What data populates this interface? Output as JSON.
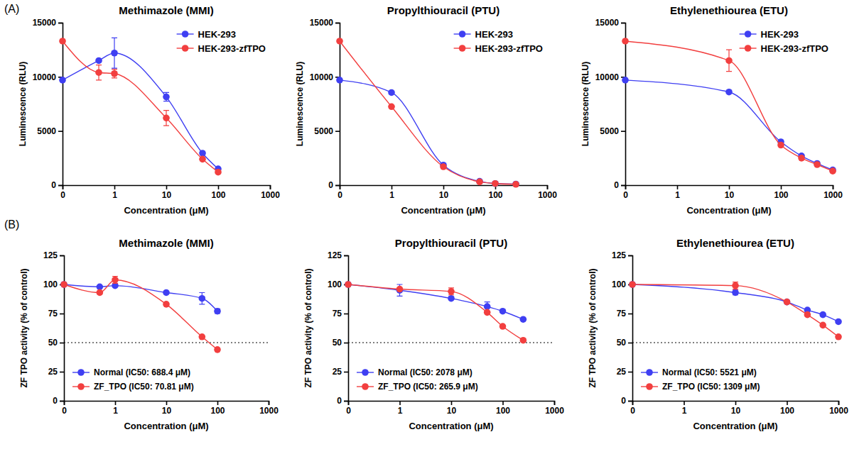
{
  "chart_data": [
    {
      "type": "line",
      "panel_label": "(A)",
      "title": "Methimazole (MMI)",
      "x_label": "Concentration (μM)",
      "y_label": "Luminescence (RLU)",
      "log": "x",
      "x": [
        0.1,
        0.5,
        1,
        10,
        50,
        100
      ],
      "xlim": [
        0.1,
        1000
      ],
      "xticks": [
        {
          "value": 0.1,
          "label": "0"
        },
        1,
        10,
        100,
        1000
      ],
      "ylim": [
        0,
        15000
      ],
      "yticks": [
        0,
        5000,
        10000,
        15000
      ],
      "legend": "upper right",
      "series": [
        {
          "name": "HEK-293",
          "color": "#3f3ff2",
          "marker": "circle",
          "values": [
            9700,
            11500,
            12200,
            8150,
            2950,
            1500
          ],
          "errors": [
            0,
            0,
            1400,
            400,
            0,
            0
          ]
        },
        {
          "name": "HEK-293-zfTPO",
          "color": "#f23f3f",
          "marker": "circle",
          "values": [
            13300,
            10400,
            10300,
            6200,
            2400,
            1200
          ],
          "errors": [
            0,
            700,
            400,
            700,
            0,
            0
          ]
        }
      ]
    },
    {
      "type": "line",
      "title": "Propylthiouracil (PTU)",
      "x_label": "Concentration (μM)",
      "y_label": "Luminescence (RLU)",
      "log": "x",
      "x": [
        0.1,
        1,
        10,
        50,
        100,
        250
      ],
      "xlim": [
        0.1,
        1000
      ],
      "xticks": [
        {
          "value": 0.1,
          "label": "0"
        },
        1,
        10,
        100,
        1000
      ],
      "ylim": [
        0,
        15000
      ],
      "yticks": [
        0,
        5000,
        10000,
        15000
      ],
      "legend": "upper right",
      "series": [
        {
          "name": "HEK-293",
          "color": "#3f3ff2",
          "marker": "circle",
          "values": [
            9700,
            8550,
            1850,
            350,
            150,
            100
          ],
          "errors": [
            0,
            0,
            0,
            0,
            0,
            0
          ]
        },
        {
          "name": "HEK-293-zfTPO",
          "color": "#f23f3f",
          "marker": "circle",
          "values": [
            13300,
            7250,
            1700,
            300,
            150,
            80
          ],
          "errors": [
            0,
            0,
            0,
            0,
            0,
            0
          ]
        }
      ]
    },
    {
      "type": "line",
      "title": "Ethylenethiourea (ETU)",
      "x_label": "Concentration (μM)",
      "y_label": "Luminescence (RLU)",
      "log": "x",
      "x": [
        0.1,
        10,
        100,
        250,
        500,
        1000
      ],
      "xlim": [
        0.1,
        1000
      ],
      "xticks": [
        {
          "value": 0.1,
          "label": "0"
        },
        1,
        10,
        100,
        1000
      ],
      "ylim": [
        0,
        15000
      ],
      "yticks": [
        0,
        5000,
        10000,
        15000
      ],
      "legend": "upper right",
      "series": [
        {
          "name": "HEK-293",
          "color": "#3f3ff2",
          "marker": "circle",
          "values": [
            9700,
            8600,
            4000,
            2700,
            2000,
            1400
          ],
          "errors": [
            0,
            0,
            0,
            0,
            0,
            0
          ]
        },
        {
          "name": "HEK-293-zfTPO",
          "color": "#f23f3f",
          "marker": "circle",
          "values": [
            13300,
            11500,
            3700,
            2500,
            1900,
            1300
          ],
          "errors": [
            0,
            1000,
            0,
            0,
            0,
            0
          ]
        }
      ]
    },
    {
      "type": "line",
      "panel_label": "(B)",
      "title": "Methimazole (MMI)",
      "x_label": "Concentration (μM)",
      "y_label": "ZF TPO activity (% of control)",
      "log": "x",
      "x": [
        0.1,
        0.5,
        1,
        10,
        50,
        100
      ],
      "xlim": [
        0.1,
        1000
      ],
      "xticks": [
        {
          "value": 0.1,
          "label": "0"
        },
        1,
        10,
        100,
        1000
      ],
      "ylim": [
        0,
        125
      ],
      "yticks": [
        0,
        25,
        50,
        75,
        100,
        125
      ],
      "threshold": 50,
      "legend": "lower left",
      "series": [
        {
          "name": "Normal (IC50: 688.4 μM)",
          "color": "#3f3ff2",
          "marker": "circle",
          "values": [
            100,
            98,
            99,
            93,
            88,
            77
          ],
          "errors": [
            0,
            0,
            0,
            0,
            5,
            2
          ]
        },
        {
          "name": "ZF_TPO (IC50: 70.81 μM)",
          "color": "#f23f3f",
          "marker": "circle",
          "values": [
            100,
            93,
            104,
            83,
            55,
            44
          ],
          "errors": [
            0,
            1,
            3,
            0,
            0,
            0
          ]
        }
      ]
    },
    {
      "type": "line",
      "title": "Propylthiouracil (PTU)",
      "x_label": "Concentration (μM)",
      "y_label": "ZF TPO activity (% of control)",
      "log": "x",
      "x": [
        0.1,
        1,
        10,
        50,
        100,
        250
      ],
      "xlim": [
        0.1,
        1000
      ],
      "xticks": [
        {
          "value": 0.1,
          "label": "0"
        },
        1,
        10,
        100,
        1000
      ],
      "ylim": [
        0,
        125
      ],
      "yticks": [
        0,
        25,
        50,
        75,
        100,
        125
      ],
      "threshold": 50,
      "legend": "lower left",
      "series": [
        {
          "name": "Normal (IC50: 2078 μM)",
          "color": "#3f3ff2",
          "marker": "circle",
          "values": [
            100,
            95,
            88,
            81,
            77,
            70
          ],
          "errors": [
            0,
            5,
            0,
            4,
            0,
            0
          ]
        },
        {
          "name": "ZF_TPO (IC50: 265.9 μM)",
          "color": "#f23f3f",
          "marker": "circle",
          "values": [
            100,
            96,
            94,
            76,
            64,
            52
          ],
          "errors": [
            0,
            0,
            3,
            0,
            0,
            0
          ]
        }
      ]
    },
    {
      "type": "line",
      "title": "Ethylenethiourea (ETU)",
      "x_label": "Concentration (μM)",
      "y_label": "ZF TPO activity (% of control)",
      "log": "x",
      "x": [
        0.1,
        10,
        100,
        250,
        500,
        1000
      ],
      "xlim": [
        0.1,
        1000
      ],
      "xticks": [
        {
          "value": 0.1,
          "label": "0"
        },
        1,
        10,
        100,
        1000
      ],
      "ylim": [
        0,
        125
      ],
      "yticks": [
        0,
        25,
        50,
        75,
        100,
        125
      ],
      "threshold": 50,
      "legend": "lower left",
      "series": [
        {
          "name": "Normal (IC50: 5521 μM)",
          "color": "#3f3ff2",
          "marker": "circle",
          "values": [
            100,
            93,
            85,
            78,
            74,
            68
          ],
          "errors": [
            0,
            2,
            0,
            0,
            0,
            0
          ]
        },
        {
          "name": "ZF_TPO (IC50: 1309 μM)",
          "color": "#f23f3f",
          "marker": "circle",
          "values": [
            100,
            99,
            85,
            74,
            65,
            55
          ],
          "errors": [
            0,
            3,
            0,
            0,
            0,
            0
          ]
        }
      ]
    }
  ]
}
